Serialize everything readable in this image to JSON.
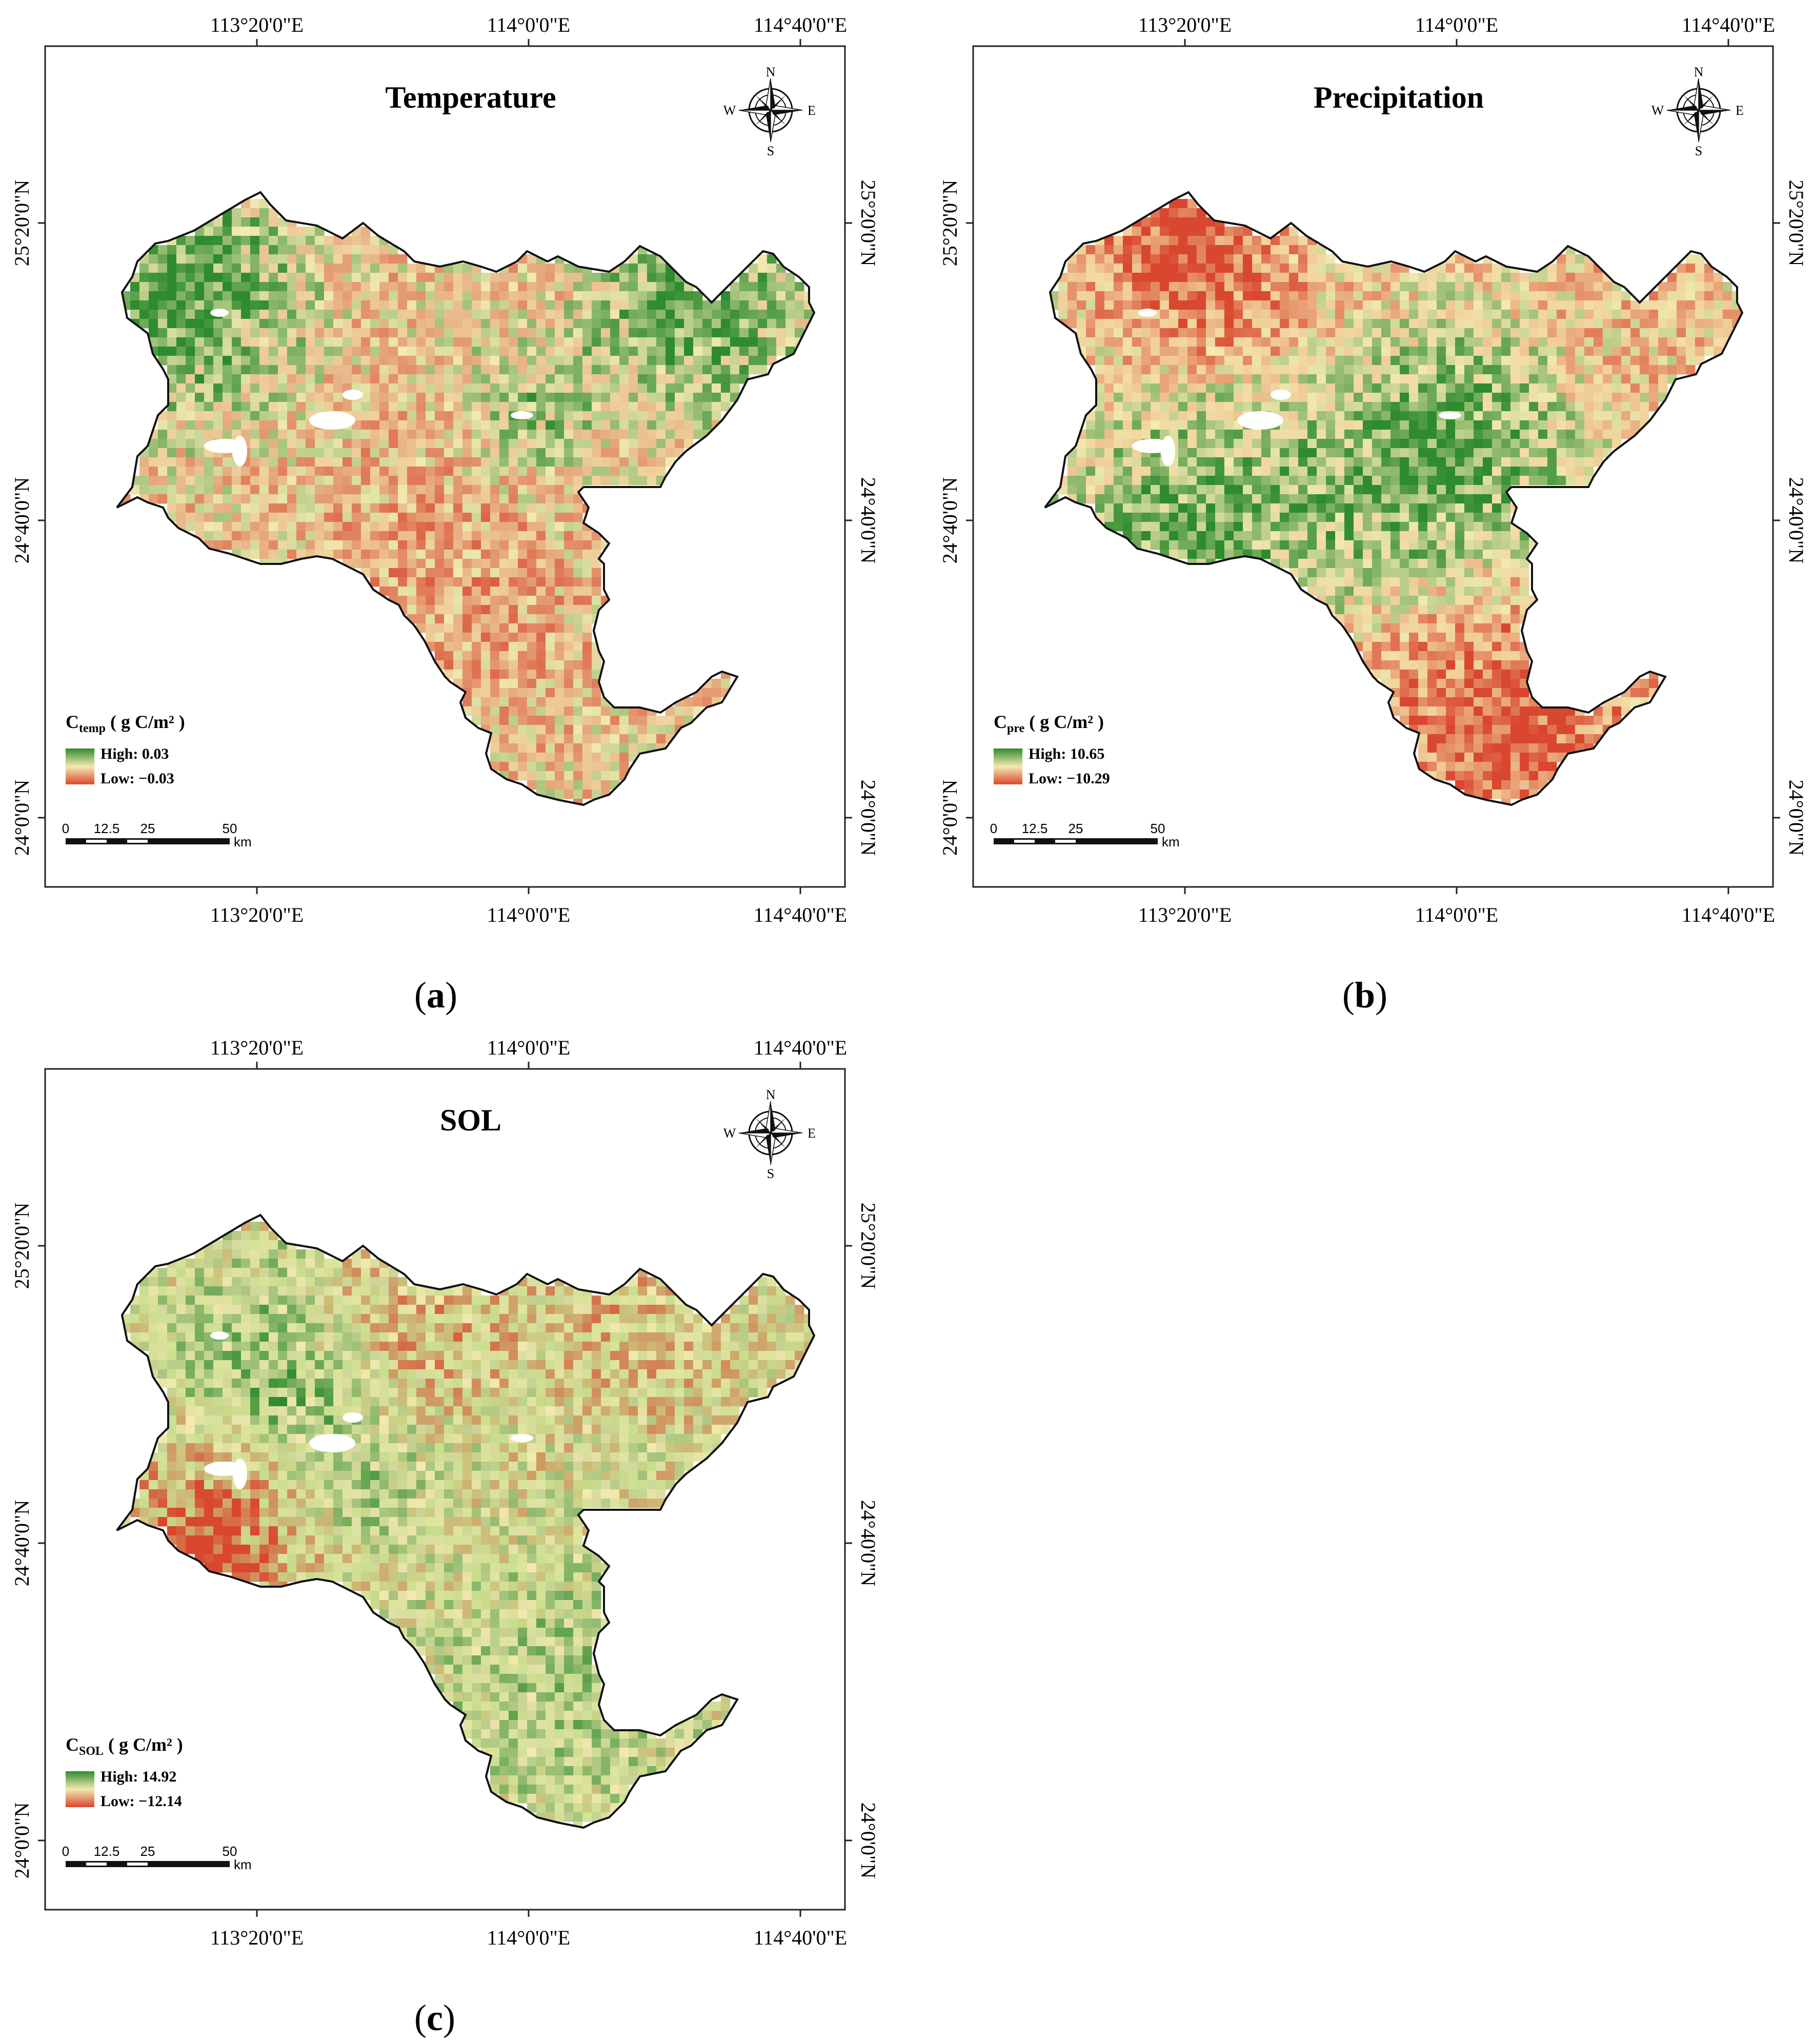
{
  "panels": [
    {
      "id": "a",
      "title": "Temperature",
      "caption_letter": "a",
      "legend": {
        "symbol": "C",
        "subscript": "temp",
        "units": " ( g C/m² )",
        "high": "High: 0.03",
        "low": "Low: −0.03"
      },
      "palette": {
        "high": "#2e8b2e",
        "mid": "#f4e9b0",
        "low": "#d9472f",
        "base": "#e8b889"
      }
    },
    {
      "id": "b",
      "title": "Precipitation",
      "caption_letter": "b",
      "legend": {
        "symbol": "C",
        "subscript": "pre",
        "units": " ( g C/m² )",
        "high": "High: 10.65",
        "low": "Low: −10.29"
      },
      "palette": {
        "high": "#2e8b2e",
        "mid": "#f4e9b0",
        "low": "#d9472f",
        "base": "#f0cf9a"
      }
    },
    {
      "id": "c",
      "title": "SOL",
      "caption_letter": "c",
      "legend": {
        "symbol": "C",
        "subscript": "SOL",
        "units": " ( g C/m² )",
        "high": "High: 14.92",
        "low": "Low: −12.14"
      },
      "palette": {
        "high": "#2e8b2e",
        "mid": "#f4e9b0",
        "low": "#d9472f",
        "base": "#c9dd8e"
      }
    }
  ],
  "axes": {
    "lon_labels": [
      "113°20'0\"E",
      "114°0'0\"E",
      "114°40'0\"E"
    ],
    "lat_labels": [
      "25°20'0\"N",
      "24°40'0\"N",
      "24°0'0\"N"
    ]
  },
  "compass": {
    "n": "N",
    "s": "S",
    "e": "E",
    "w": "W"
  },
  "scale_bar": {
    "ticks": [
      "0",
      "12.5",
      "25",
      "50"
    ],
    "unit": "km"
  }
}
